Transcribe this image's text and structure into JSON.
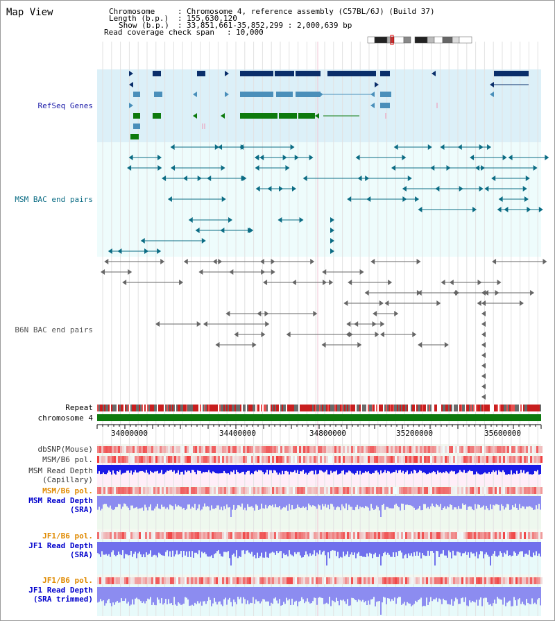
{
  "title": "Map View",
  "header": {
    "chromosome_key": "Chromosome",
    "chromosome_val": "Chromosome 4, reference assembly (C57BL/6J) (Build 37)",
    "length_key": "Length (b.p.)",
    "length_val": "155,630,120",
    "show_key": "Show (b.p.)",
    "show_val": "33,851,661-35,852,299 : 2,000,639 bp",
    "coverage_key": "Read coverage check span",
    "coverage_val": "10,000",
    "sep": ":"
  },
  "tracks": {
    "refseq": "RefSeq Genes",
    "msm_bac": "MSM BAC end pairs",
    "b6n_bac": "B6N BAC end pairs",
    "repeat": "Repeat",
    "chromosome": "chromosome 4",
    "dbsnp": "dbSNP(Mouse)",
    "msm_b6_pol": "MSM/B6 pol.",
    "msm_depth_cap_1": "MSM Read Depth",
    "msm_depth_cap_2": "(Capillary)",
    "msm_b6_pol_2": "MSM/B6 pol.",
    "msm_depth_sra_1": "MSM Read Depth",
    "msm_depth_sra_2": "(SRA)",
    "jf1_b6_pol": "JF1/B6 pol.",
    "jf1_depth_sra_1": "JF1 Read Depth",
    "jf1_depth_sra_2": "(SRA)",
    "jf1_b6_pol_2": "JF1/B6 pol.",
    "jf1_depth_trim_1": "JF1 Read Depth",
    "jf1_depth_trim_2": "(SRA trimmed)"
  },
  "axis": {
    "ticks": [
      "34000000",
      "34400000",
      "34800000",
      "35200000",
      "35600000"
    ]
  },
  "colors": {
    "refseq_bg": "#dcf0f8",
    "track_bg": "#eefcfc",
    "refseq_label": "#1a1aa8",
    "msm_label": "#0b6c84",
    "b6n_label": "#555555",
    "pol_label_orange": "#e08a00",
    "depth_label_blue": "#0000cc",
    "gene_dark": "#0a2e6a",
    "gene_mid": "#4a8fba",
    "gene_green": "#0d7a0d",
    "chromosome_bar": "#0e7a0e"
  }
}
